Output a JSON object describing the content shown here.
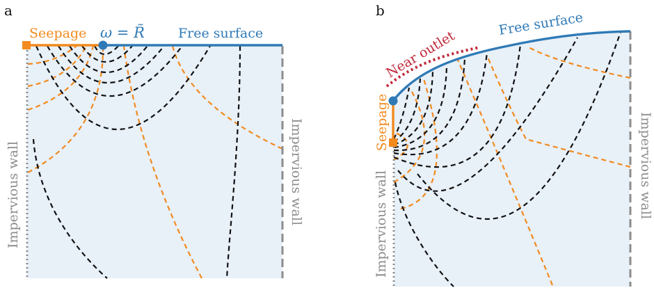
{
  "panel_a": {
    "panel_label": "a",
    "seepage_label": "Seepage",
    "separation_label": "ω = R̃",
    "free_surface_label": "Free surface",
    "left_wall_label": "Impervious wall",
    "right_wall_label": "Impervious wall"
  },
  "panel_b": {
    "panel_label": "b",
    "seepage_label": "Seepage",
    "near_outlet_label": "Near outlet",
    "free_surface_label": "Free surface",
    "left_wall_label": "Impervious wall",
    "right_wall_label": "Impervious wall"
  },
  "colors": {
    "free_surface": "#2f7ab6",
    "seepage": "#f28a1e",
    "near_outlet": "#c0283a",
    "wall": "#8c8c8c",
    "domain_fill": "#e8f0f8"
  }
}
